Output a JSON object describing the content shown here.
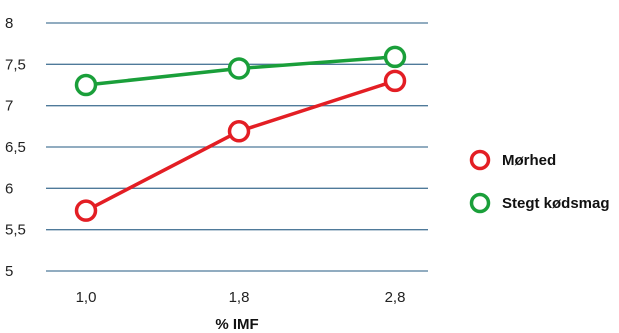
{
  "chart_data": {
    "type": "line",
    "categories": [
      "1,0",
      "1,8",
      "2,8"
    ],
    "series": [
      {
        "name": "Mørhed",
        "values": [
          5.73,
          6.69,
          7.3
        ],
        "color": "#e31e24"
      },
      {
        "name": "Stegt kødsmag",
        "values": [
          7.25,
          7.45,
          7.59
        ],
        "color": "#1a9f3a"
      }
    ],
    "xlabel": "% IMF",
    "ylabel": "",
    "ylim": [
      5,
      8
    ],
    "yticks": [
      "5",
      "5,5",
      "6",
      "6,5",
      "7",
      "7,5",
      "8"
    ],
    "grid": true,
    "gridline_color": "#4f7a9a",
    "legend_position": "right"
  }
}
